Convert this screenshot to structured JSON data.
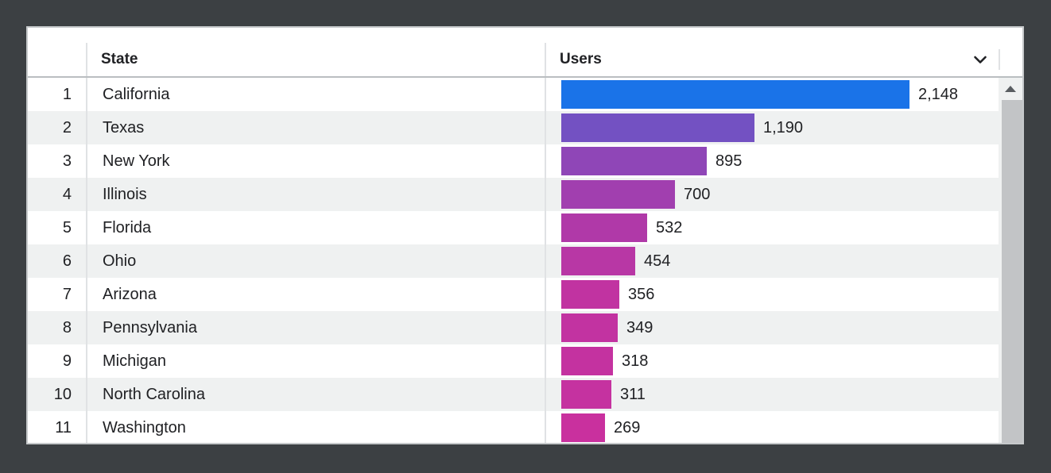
{
  "table": {
    "columns": [
      {
        "label": "State"
      },
      {
        "label": "Users"
      }
    ],
    "max_value": 2148,
    "rows": [
      {
        "index": "1",
        "state": "California",
        "value": 2148,
        "display": "2,148",
        "color": "#1a73e8"
      },
      {
        "index": "2",
        "state": "Texas",
        "value": 1190,
        "display": "1,190",
        "color": "#7351c2"
      },
      {
        "index": "3",
        "state": "New York",
        "value": 895,
        "display": "895",
        "color": "#8f46b7"
      },
      {
        "index": "4",
        "state": "Illinois",
        "value": 700,
        "display": "700",
        "color": "#a13faf"
      },
      {
        "index": "5",
        "state": "Florida",
        "value": 532,
        "display": "532",
        "color": "#b039a8"
      },
      {
        "index": "6",
        "state": "Ohio",
        "value": 454,
        "display": "454",
        "color": "#b837a5"
      },
      {
        "index": "7",
        "state": "Arizona",
        "value": 356,
        "display": "356",
        "color": "#c133a1"
      },
      {
        "index": "8",
        "state": "Pennsylvania",
        "value": 349,
        "display": "349",
        "color": "#c233a1"
      },
      {
        "index": "9",
        "state": "Michigan",
        "value": 318,
        "display": "318",
        "color": "#c432a0"
      },
      {
        "index": "10",
        "state": "North Carolina",
        "value": 311,
        "display": "311",
        "color": "#c532a0"
      },
      {
        "index": "11",
        "state": "Washington",
        "value": 269,
        "display": "269",
        "color": "#c9309e"
      }
    ]
  },
  "chart_data": {
    "type": "bar",
    "orientation": "horizontal",
    "title": "",
    "category_label": "State",
    "value_label": "Users",
    "categories": [
      "California",
      "Texas",
      "New York",
      "Illinois",
      "Florida",
      "Ohio",
      "Arizona",
      "Pennsylvania",
      "Michigan",
      "North Carolina",
      "Washington"
    ],
    "values": [
      2148,
      1190,
      895,
      700,
      532,
      454,
      356,
      349,
      318,
      311,
      269
    ],
    "xlim": [
      0,
      2148
    ],
    "bar_colors": [
      "#1a73e8",
      "#7351c2",
      "#8f46b7",
      "#a13faf",
      "#b039a8",
      "#b837a5",
      "#c133a1",
      "#c233a1",
      "#c432a0",
      "#c532a0",
      "#c9309e"
    ],
    "legend": "none",
    "grid": "off"
  },
  "colors": {
    "page_background": "#3c4043",
    "card_background": "#ffffff",
    "alt_row_background": "#eff1f1",
    "divider": "#e0e2e4",
    "header_border": "#babec1",
    "text": "#202124",
    "scrollbar_thumb": "#c2c4c6",
    "scrollbar_track": "#eff1f1",
    "bar_max_color": "#1a73e8",
    "bar_min_color": "#c9309e"
  }
}
